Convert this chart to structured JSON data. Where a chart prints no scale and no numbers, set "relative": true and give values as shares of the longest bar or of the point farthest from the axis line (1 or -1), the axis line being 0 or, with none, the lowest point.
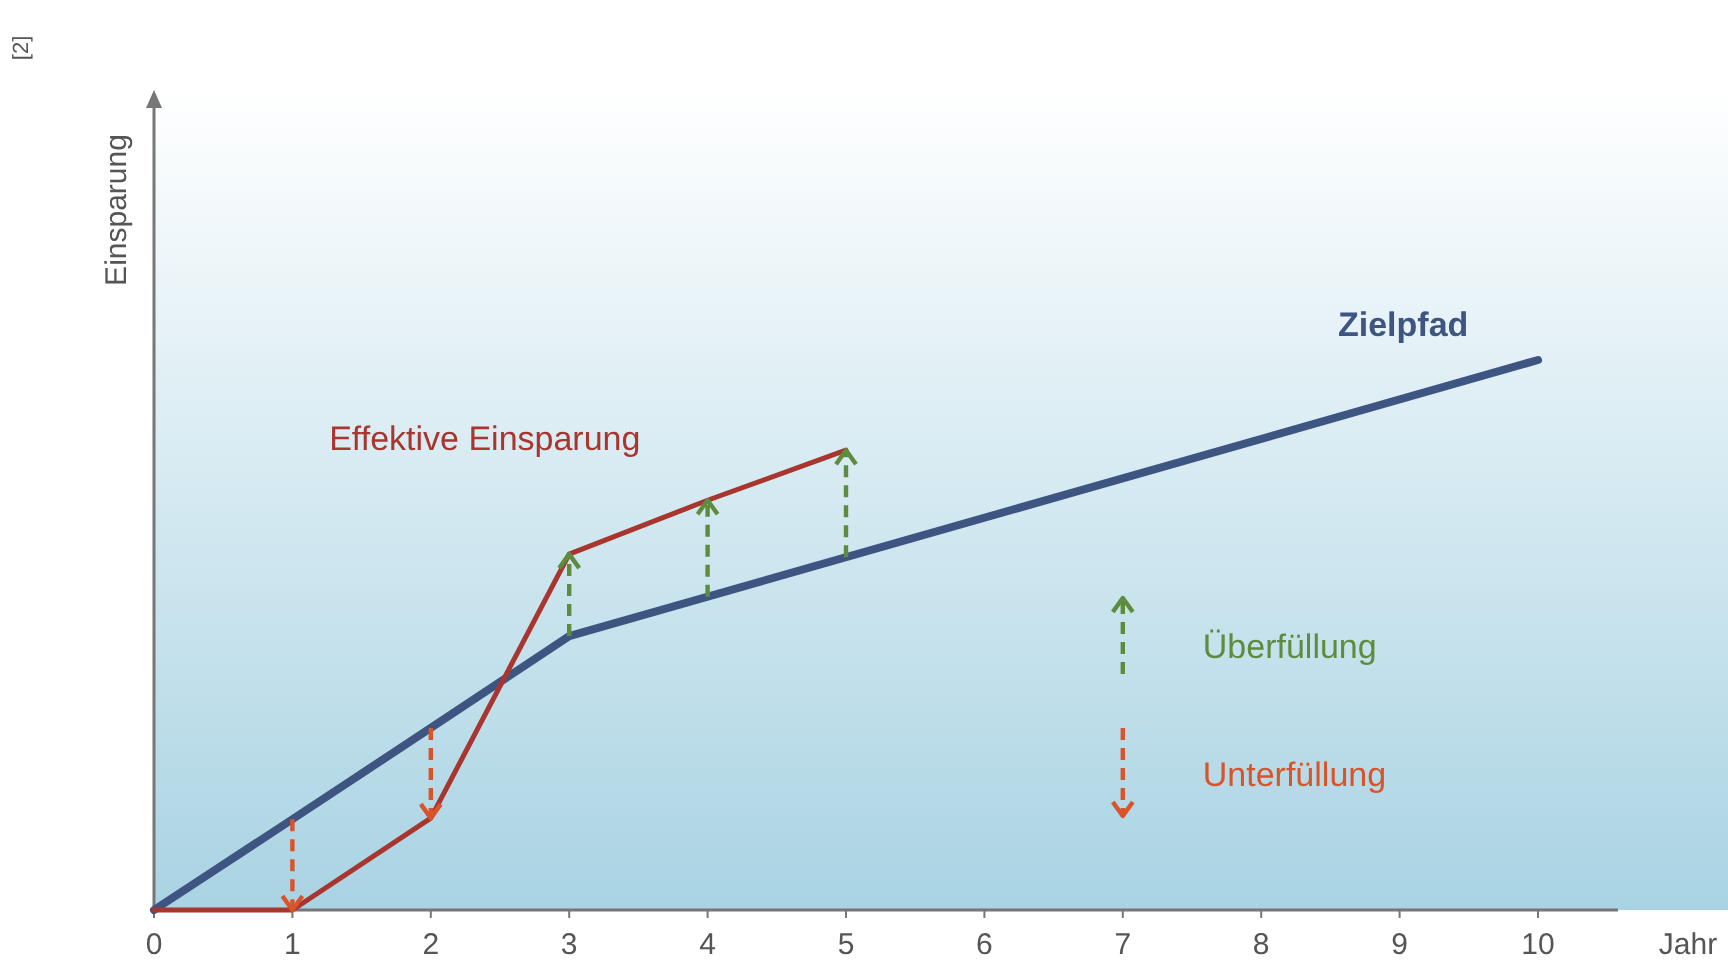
{
  "chart_data": {
    "type": "line",
    "relative": true,
    "xlabel": "Jahr",
    "ylabel": "Einsparung",
    "xlim": [
      0,
      10
    ],
    "xticks": [
      0,
      1,
      2,
      3,
      4,
      5,
      6,
      7,
      8,
      9,
      10
    ],
    "grid": false,
    "line_style": "solid",
    "annotations": [
      "[2]",
      "Überfüllung",
      "Unterfüllung"
    ],
    "series": [
      {
        "name": "Zielpfad",
        "color": "#3d5580",
        "x": [
          0,
          1,
          2,
          3,
          10
        ],
        "values": [
          0,
          0.165,
          0.331,
          0.498,
          1
        ]
      },
      {
        "name": "Effektive Einsparung",
        "color": "#a8352e",
        "x": [
          0,
          1,
          2,
          3,
          4,
          5
        ],
        "values": [
          0,
          0,
          0.167,
          0.647,
          0.745,
          0.836
        ]
      }
    ]
  }
}
